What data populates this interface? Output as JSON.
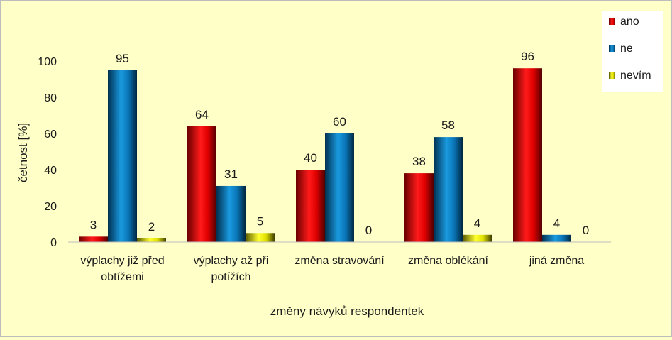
{
  "chart_data": {
    "type": "bar",
    "categories": [
      [
        "výplachy již před",
        "obtížemi"
      ],
      [
        "výplachy až při",
        "potížích"
      ],
      [
        "změna stravování"
      ],
      [
        "změna oblékání"
      ],
      [
        "jiná změna"
      ]
    ],
    "series": [
      {
        "name": "ano",
        "color": "#e00000",
        "values": [
          3,
          64,
          40,
          38,
          96
        ]
      },
      {
        "name": "ne",
        "color": "#0a76b8",
        "values": [
          95,
          31,
          60,
          58,
          4
        ]
      },
      {
        "name": "nevím",
        "color": "#e0e000",
        "values": [
          2,
          5,
          0,
          4,
          0
        ]
      }
    ],
    "xlabel": "změny návyků respondentek",
    "ylabel": "četnost  [%]",
    "ylim": [
      0,
      100
    ],
    "yticks": [
      0,
      20,
      40,
      60,
      80,
      100
    ],
    "grid": false,
    "legend": "top-right"
  }
}
